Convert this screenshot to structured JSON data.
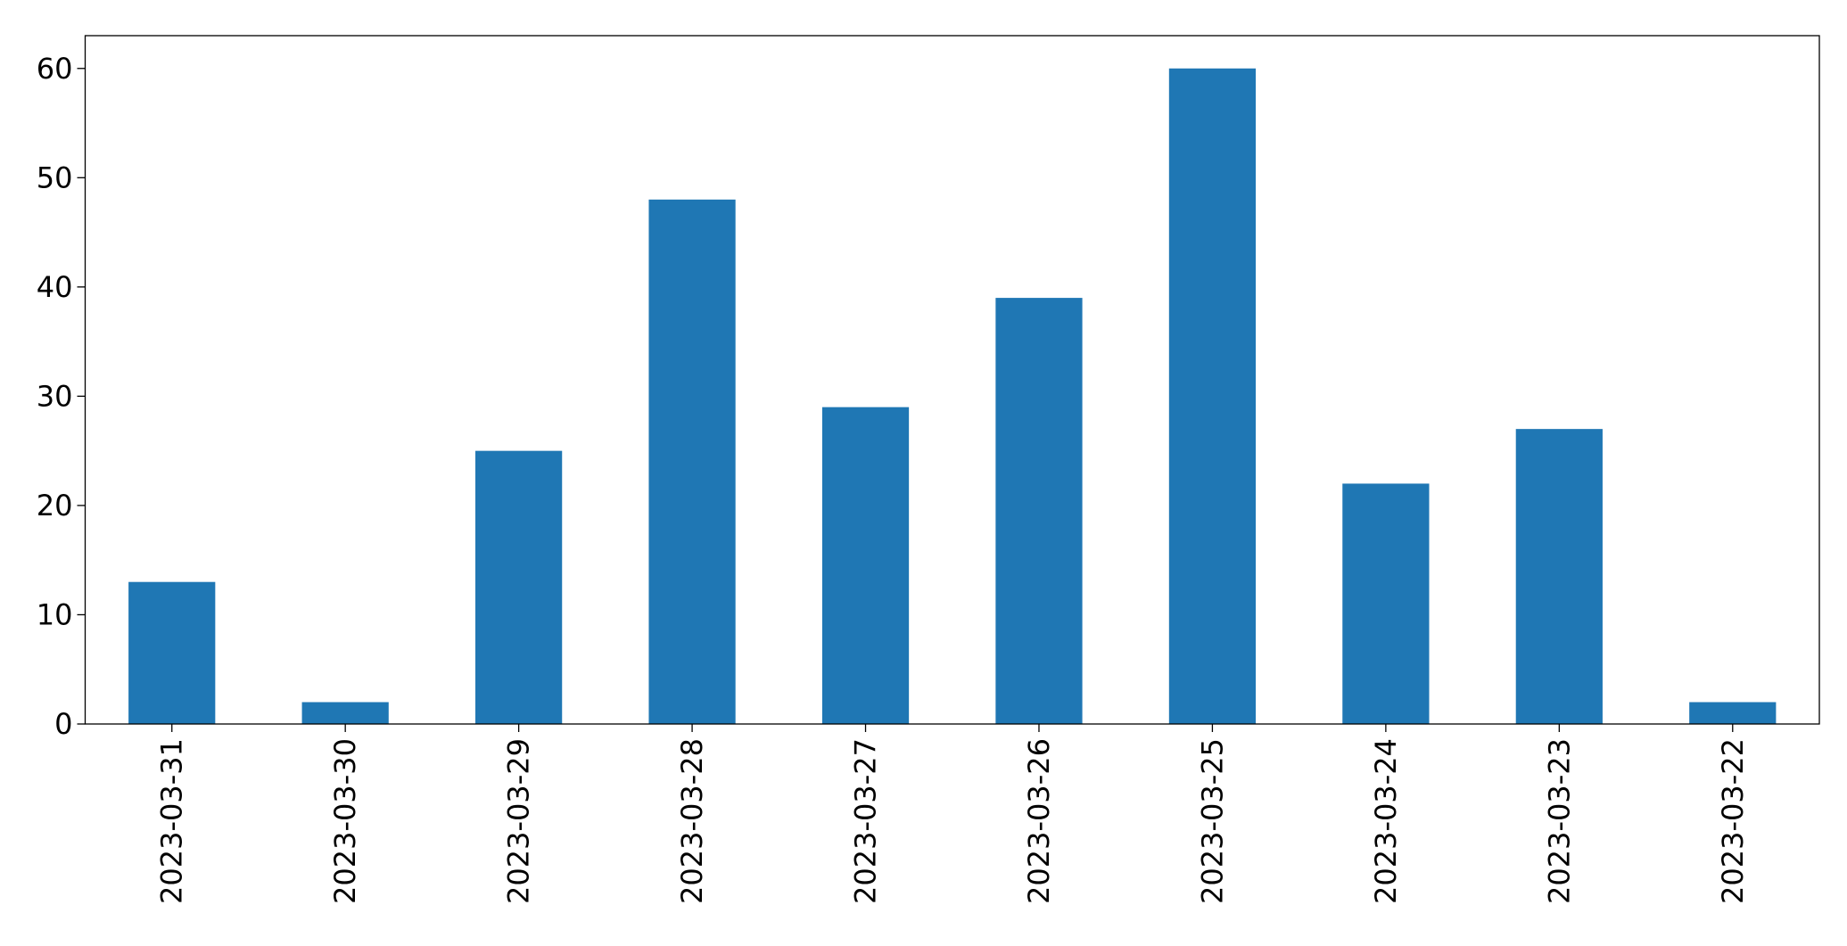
{
  "chart_data": {
    "type": "bar",
    "categories": [
      "2023-03-31",
      "2023-03-30",
      "2023-03-29",
      "2023-03-28",
      "2023-03-27",
      "2023-03-26",
      "2023-03-25",
      "2023-03-24",
      "2023-03-23",
      "2023-03-22"
    ],
    "values": [
      13,
      2,
      25,
      48,
      29,
      39,
      60,
      22,
      27,
      2
    ],
    "color": "#1f77b4",
    "ylim": [
      0,
      63
    ],
    "yticks": [
      0,
      10,
      20,
      30,
      40,
      50,
      60
    ],
    "grid": false
  }
}
